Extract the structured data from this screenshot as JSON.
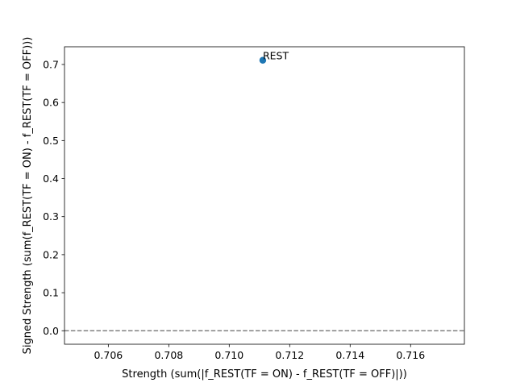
{
  "chart_data": {
    "type": "scatter",
    "title": "",
    "xlabel": "Strength (sum(|f_REST(TF = ON) - f_REST(TF = OFF)|))",
    "ylabel": "Signed Strength (sum(f_REST(TF = ON) - f_REST(TF = OFF)))",
    "xlim": [
      0.70455,
      0.71778
    ],
    "ylim": [
      -0.0355,
      0.7466
    ],
    "xticks": [
      0.706,
      0.708,
      0.71,
      0.712,
      0.714,
      0.716
    ],
    "xtick_labels": [
      "0.706",
      "0.708",
      "0.710",
      "0.712",
      "0.714",
      "0.716"
    ],
    "yticks": [
      0.0,
      0.1,
      0.2,
      0.3,
      0.4,
      0.5,
      0.6,
      0.7
    ],
    "ytick_labels": [
      "0.0",
      "0.1",
      "0.2",
      "0.3",
      "0.4",
      "0.5",
      "0.6",
      "0.7"
    ],
    "grid": false,
    "points": [
      {
        "label": "REST",
        "x": 0.71111,
        "y": 0.7111
      }
    ],
    "reference_lines": [
      {
        "orientation": "horizontal",
        "y": 0.0,
        "style": "dashed",
        "color": "#808080"
      }
    ],
    "colors": {
      "point": "#1f77b4",
      "axes": "#000000"
    }
  }
}
